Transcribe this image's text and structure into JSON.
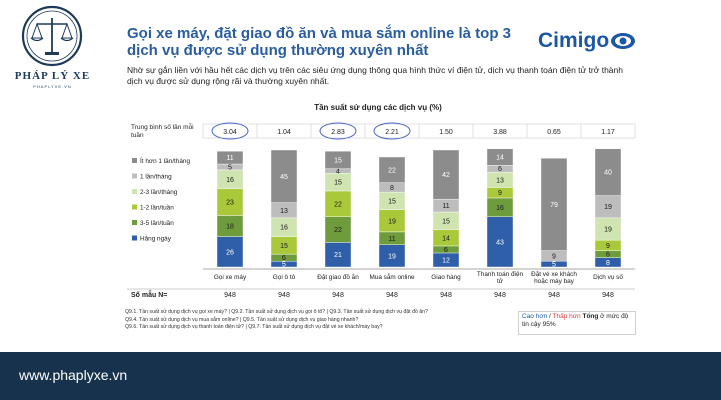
{
  "site": {
    "brand": "PHÁP LÝ XE",
    "sub": "PHAPLYXE.VN",
    "footer_url": "www.phaplyxe.vn"
  },
  "slide": {
    "title": "Gọi xe máy, đặt giao đồ ăn và mua sắm online là top 3 dịch vụ được sử dụng thường xuyên nhất",
    "brand": "Cimigo",
    "intro": "Nhờ sự gắn liền với hầu hết các dịch vụ trên các siêu ứng dụng thông qua hình thức ví điện tử, dịch vụ thanh toán điện tử trở thành dịch vụ được sử dụng rộng rãi và thường xuyên nhất.",
    "footnotes": [
      "Q9.1. Tần suất sử dụng dịch vụ gọi xe máy? | Q9.2. Tần suất sử dụng dịch vụ gọi ô tô? | Q9.3. Tần suất sử dụng dịch vụ đặt đồ ăn?",
      "Q9.4. Tần suất sử dụng dịch vụ mua sắm online? | Q9.5. Tần suất sử dụng dịch vụ giao hàng nhanh?",
      "Q9.6. Tần suất sử dụng dịch vụ thanh toán điện tử? | Q9.7. Tần suất sử dụng dịch vụ đặt vé xe khách/máy bay?"
    ],
    "sig_legend": {
      "high": "Cao hơn",
      "sep": " / ",
      "low": "Thấp hơn",
      "total": " Tổng",
      "tail": " ở mức độ tin cậy 95%"
    }
  },
  "chart_data": {
    "type": "bar",
    "stacked": true,
    "percent": true,
    "title": "Tần suất sử dụng các dịch vụ (%)",
    "avg_label": "Trung bình số lần mỗi tuần",
    "sample_label": "Số mẫu N=",
    "categories": [
      "Gọi xe máy",
      "Gọi ô tô",
      "Đặt giao đồ ăn",
      "Mua sắm online",
      "Giao hàng",
      "Thanh toán điện tử",
      "Đặt vé xe khách hoặc máy bay",
      "Dịch vụ số"
    ],
    "avg_per_week": [
      "3.04",
      "1.04",
      "2.83",
      "2.21",
      "1.50",
      "3.88",
      "0.65",
      "1.17"
    ],
    "avg_circled": [
      true,
      false,
      true,
      true,
      false,
      false,
      false,
      false
    ],
    "sample_n": [
      "948",
      "948",
      "948",
      "948",
      "948",
      "948",
      "948",
      "948"
    ],
    "series": [
      {
        "name": "Hằng ngày",
        "color": "#2f5fa8",
        "values": [
          26,
          5,
          21,
          19,
          12,
          43,
          5,
          8
        ]
      },
      {
        "name": "3-5 lần/tuần",
        "color": "#6e9c3c",
        "values": [
          18,
          6,
          22,
          11,
          6,
          16,
          0,
          6
        ]
      },
      {
        "name": "1-2 lần/tuần",
        "color": "#a9c93b",
        "values": [
          23,
          15,
          22,
          19,
          14,
          9,
          0,
          9
        ]
      },
      {
        "name": "2-3 lần/tháng",
        "color": "#cfe4b0",
        "values": [
          16,
          16,
          15,
          15,
          15,
          13,
          0,
          19
        ]
      },
      {
        "name": "1 lần/tháng",
        "color": "#bdbdbd",
        "values": [
          5,
          13,
          4,
          8,
          11,
          6,
          9,
          19
        ]
      },
      {
        "name": "Ít hơn 1 lần/tháng",
        "color": "#8c8c8c",
        "values": [
          11,
          45,
          15,
          22,
          42,
          14,
          79,
          40
        ]
      }
    ],
    "legend_order": [
      "Ít hơn 1 lần/tháng",
      "1 lần/tháng",
      "2-3 lần/tháng",
      "1-2 lần/tuần",
      "3-5 lần/tuần",
      "Hằng ngày"
    ],
    "ylim": [
      0,
      100
    ]
  }
}
